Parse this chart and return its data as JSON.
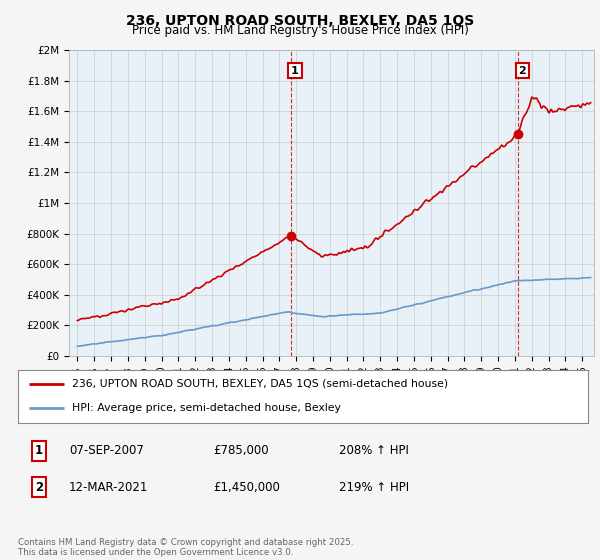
{
  "title": "236, UPTON ROAD SOUTH, BEXLEY, DA5 1QS",
  "subtitle": "Price paid vs. HM Land Registry's House Price Index (HPI)",
  "background_color": "#f5f5f5",
  "plot_bg_color": "#e8f0f8",
  "red_color": "#cc0000",
  "blue_color": "#6699cc",
  "grid_color": "#cccccc",
  "ylim": [
    0,
    2000000
  ],
  "yticks": [
    0,
    200000,
    400000,
    600000,
    800000,
    1000000,
    1200000,
    1400000,
    1600000,
    1800000,
    2000000
  ],
  "ytick_labels": [
    "£0",
    "£200K",
    "£400K",
    "£600K",
    "£800K",
    "£1M",
    "£1.2M",
    "£1.4M",
    "£1.6M",
    "£1.8M",
    "£2M"
  ],
  "xlim_start": 1994.5,
  "xlim_end": 2025.7,
  "xtick_years": [
    1995,
    1996,
    1997,
    1998,
    1999,
    2000,
    2001,
    2002,
    2003,
    2004,
    2005,
    2006,
    2007,
    2008,
    2009,
    2010,
    2011,
    2012,
    2013,
    2014,
    2015,
    2016,
    2017,
    2018,
    2019,
    2020,
    2021,
    2022,
    2023,
    2024,
    2025
  ],
  "sale1_x": 2007.68,
  "sale1_y": 785000,
  "sale1_label": "1",
  "sale2_x": 2021.19,
  "sale2_y": 1450000,
  "sale2_label": "2",
  "legend_red": "236, UPTON ROAD SOUTH, BEXLEY, DA5 1QS (semi-detached house)",
  "legend_blue": "HPI: Average price, semi-detached house, Bexley",
  "note1_label": "1",
  "note1_date": "07-SEP-2007",
  "note1_price": "£785,000",
  "note1_hpi": "208% ↑ HPI",
  "note2_label": "2",
  "note2_date": "12-MAR-2021",
  "note2_price": "£1,450,000",
  "note2_hpi": "219% ↑ HPI",
  "footer": "Contains HM Land Registry data © Crown copyright and database right 2025.\nThis data is licensed under the Open Government Licence v3.0."
}
